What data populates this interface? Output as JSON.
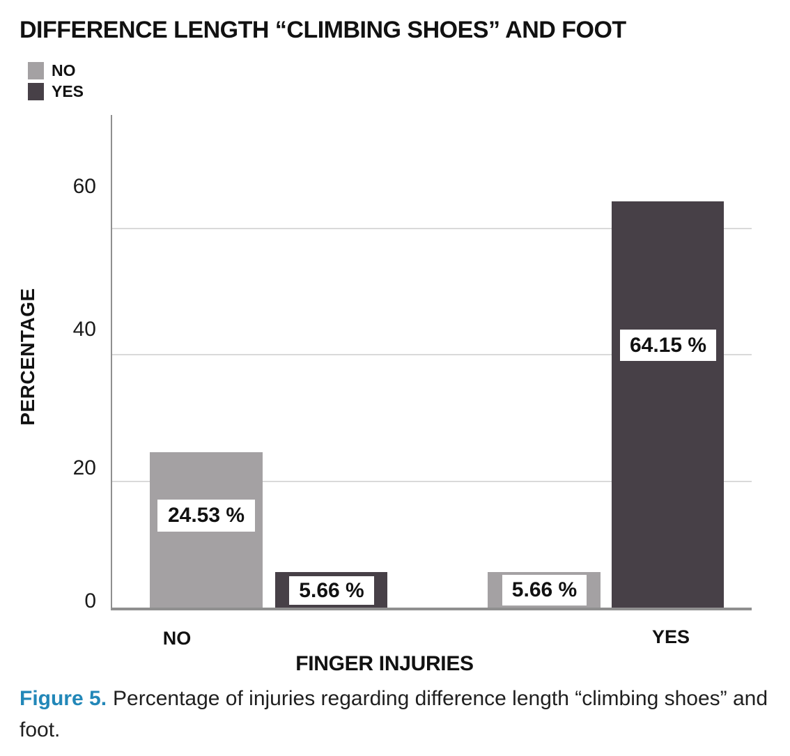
{
  "figure": {
    "title": "DIFFERENCE LENGTH “CLIMBING SHOES” AND FOOT",
    "caption": {
      "label": "Figure 5.",
      "text": "Percentage of injuries regarding difference length “climbing shoes” and foot."
    }
  },
  "chart_data": {
    "type": "bar",
    "title": "DIFFERENCE LENGTH “CLIMBING SHOES” AND FOOT",
    "categories": [
      "NO",
      "YES"
    ],
    "series": [
      {
        "name": "NO",
        "color": "#a4a1a3",
        "values": [
          24.53,
          5.66
        ]
      },
      {
        "name": "YES",
        "color": "#474047",
        "values": [
          5.66,
          64.15
        ]
      }
    ],
    "value_labels": [
      "24.53 %",
      "5.66 %",
      "5.66 %",
      "64.15 %"
    ],
    "xlabel": "FINGER INJURIES",
    "ylabel": "PERCENTAGE",
    "yticks": [
      0,
      20,
      40,
      60
    ],
    "ylim": [
      0,
      78
    ],
    "grid": true,
    "gridline_values": [
      20,
      40,
      60
    ],
    "legend_position": "top-left",
    "colors": {
      "grid": "#d9d9d9",
      "axis": "#8f8f8f",
      "label_box_bg": "#ffffff",
      "text": "#111111",
      "caption_accent": "#2287b8"
    }
  }
}
